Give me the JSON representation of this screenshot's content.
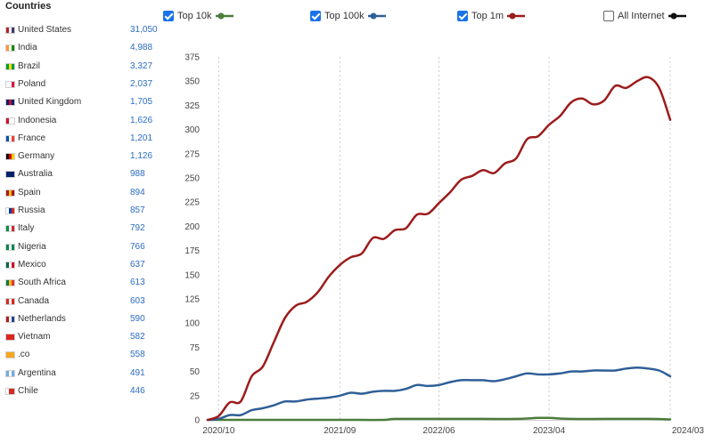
{
  "panel": {
    "title": "Countries",
    "countries": [
      {
        "name": "United States",
        "value": "31,050",
        "flag": [
          "#b22234",
          "#ffffff",
          "#3c3b6e"
        ]
      },
      {
        "name": "India",
        "value": "4,988",
        "flag": [
          "#ff9933",
          "#ffffff",
          "#138808"
        ]
      },
      {
        "name": "Brazil",
        "value": "3,327",
        "flag": [
          "#009c3b",
          "#ffdf00",
          "#009c3b"
        ]
      },
      {
        "name": "Poland",
        "value": "2,037",
        "flag": [
          "#ffffff",
          "#ffffff",
          "#dc143c"
        ]
      },
      {
        "name": "United Kingdom",
        "value": "1,705",
        "flag": [
          "#012169",
          "#c8102e",
          "#012169"
        ]
      },
      {
        "name": "Indonesia",
        "value": "1,626",
        "flag": [
          "#ce1126",
          "#ffffff",
          "#ffffff"
        ]
      },
      {
        "name": "France",
        "value": "1,201",
        "flag": [
          "#0055a4",
          "#ffffff",
          "#ef4135"
        ]
      },
      {
        "name": "Germany",
        "value": "1,126",
        "flag": [
          "#000000",
          "#dd0000",
          "#ffce00"
        ]
      },
      {
        "name": "Australia",
        "value": "988",
        "flag": [
          "#012169",
          "#012169",
          "#012169"
        ]
      },
      {
        "name": "Spain",
        "value": "894",
        "flag": [
          "#aa151b",
          "#f1bf00",
          "#aa151b"
        ]
      },
      {
        "name": "Russia",
        "value": "857",
        "flag": [
          "#ffffff",
          "#0039a6",
          "#d52b1e"
        ]
      },
      {
        "name": "Italy",
        "value": "792",
        "flag": [
          "#009246",
          "#ffffff",
          "#ce2b37"
        ]
      },
      {
        "name": "Nigeria",
        "value": "766",
        "flag": [
          "#008751",
          "#ffffff",
          "#008751"
        ]
      },
      {
        "name": "Mexico",
        "value": "637",
        "flag": [
          "#006847",
          "#ffffff",
          "#ce1126"
        ]
      },
      {
        "name": "South Africa",
        "value": "613",
        "flag": [
          "#007a4d",
          "#ffb612",
          "#de3831"
        ]
      },
      {
        "name": "Canada",
        "value": "603",
        "flag": [
          "#d52b1e",
          "#ffffff",
          "#d52b1e"
        ]
      },
      {
        "name": "Netherlands",
        "value": "590",
        "flag": [
          "#ae1c28",
          "#ffffff",
          "#21468b"
        ]
      },
      {
        "name": "Vietnam",
        "value": "582",
        "flag": [
          "#da251d",
          "#da251d",
          "#da251d"
        ]
      },
      {
        "name": ".co",
        "value": "558",
        "flag": [
          "#f5a623",
          "#f5a623",
          "#f5a623"
        ]
      },
      {
        "name": "Argentina",
        "value": "491",
        "flag": [
          "#74acdf",
          "#ffffff",
          "#74acdf"
        ]
      },
      {
        "name": "Chile",
        "value": "446",
        "flag": [
          "#ffffff",
          "#d52b1e",
          "#d52b1e"
        ]
      }
    ]
  },
  "legend": [
    {
      "label": "Top 10k",
      "checked": true,
      "color": "#4a7c3a"
    },
    {
      "label": "Top 100k",
      "checked": true,
      "color": "#2f5f97"
    },
    {
      "label": "Top 1m",
      "checked": true,
      "color": "#9c1c1c"
    },
    {
      "label": "All Internet",
      "checked": false,
      "color": "#111111"
    }
  ],
  "chart_data": {
    "type": "line",
    "xlabel": "",
    "ylabel": "",
    "x_tick_labels": [
      "2020/10",
      "2021/09",
      "2022/06",
      "2023/04",
      "2024/03"
    ],
    "ylim": [
      0,
      375
    ],
    "y_ticks": [
      0,
      25,
      50,
      75,
      100,
      125,
      150,
      175,
      200,
      225,
      250,
      275,
      300,
      325,
      350,
      375
    ],
    "grid": {
      "vertical": true,
      "horizontal": false
    },
    "x_range": [
      "2020-09",
      "2024-03"
    ],
    "series": [
      {
        "name": "Top 10k",
        "color": "#4a7c3a",
        "points": [
          [
            "2020-09",
            0
          ],
          [
            "2021-03",
            0
          ],
          [
            "2021-09",
            0
          ],
          [
            "2022-01",
            0
          ],
          [
            "2022-02",
            1
          ],
          [
            "2022-06",
            1
          ],
          [
            "2022-10",
            1
          ],
          [
            "2023-01",
            1
          ],
          [
            "2023-03",
            2
          ],
          [
            "2023-04",
            2
          ],
          [
            "2023-06",
            1
          ],
          [
            "2023-09",
            1
          ],
          [
            "2024-01",
            1
          ],
          [
            "2024-03",
            0.5
          ]
        ]
      },
      {
        "name": "Top 100k",
        "color": "#2f5f97",
        "points": [
          [
            "2020-09",
            0
          ],
          [
            "2020-10",
            1
          ],
          [
            "2020-11",
            5
          ],
          [
            "2020-12",
            5
          ],
          [
            "2021-01",
            10
          ],
          [
            "2021-02",
            12
          ],
          [
            "2021-03",
            15
          ],
          [
            "2021-04",
            19
          ],
          [
            "2021-05",
            19
          ],
          [
            "2021-06",
            21
          ],
          [
            "2021-07",
            22
          ],
          [
            "2021-08",
            23
          ],
          [
            "2021-09",
            25
          ],
          [
            "2021-10",
            28
          ],
          [
            "2021-11",
            27
          ],
          [
            "2021-12",
            29
          ],
          [
            "2022-01",
            30
          ],
          [
            "2022-02",
            30
          ],
          [
            "2022-03",
            32
          ],
          [
            "2022-04",
            36
          ],
          [
            "2022-05",
            35
          ],
          [
            "2022-06",
            36
          ],
          [
            "2022-07",
            39
          ],
          [
            "2022-08",
            41
          ],
          [
            "2022-09",
            41
          ],
          [
            "2022-10",
            41
          ],
          [
            "2022-11",
            40
          ],
          [
            "2022-12",
            42
          ],
          [
            "2023-01",
            45
          ],
          [
            "2023-02",
            48
          ],
          [
            "2023-03",
            47
          ],
          [
            "2023-04",
            47
          ],
          [
            "2023-05",
            48
          ],
          [
            "2023-06",
            50
          ],
          [
            "2023-07",
            50
          ],
          [
            "2023-08",
            51
          ],
          [
            "2023-09",
            51
          ],
          [
            "2023-10",
            51
          ],
          [
            "2023-11",
            53
          ],
          [
            "2023-12",
            54
          ],
          [
            "2024-01",
            53
          ],
          [
            "2024-02",
            51
          ],
          [
            "2024-03",
            45
          ]
        ]
      },
      {
        "name": "Top 1m",
        "color": "#9c1c1c",
        "points": [
          [
            "2020-09",
            0
          ],
          [
            "2020-10",
            4
          ],
          [
            "2020-11",
            18
          ],
          [
            "2020-12",
            19
          ],
          [
            "2021-01",
            45
          ],
          [
            "2021-02",
            55
          ],
          [
            "2021-03",
            80
          ],
          [
            "2021-04",
            105
          ],
          [
            "2021-05",
            118
          ],
          [
            "2021-06",
            122
          ],
          [
            "2021-07",
            132
          ],
          [
            "2021-08",
            148
          ],
          [
            "2021-09",
            160
          ],
          [
            "2021-10",
            168
          ],
          [
            "2021-11",
            172
          ],
          [
            "2021-12",
            188
          ],
          [
            "2022-01",
            187
          ],
          [
            "2022-02",
            196
          ],
          [
            "2022-03",
            198
          ],
          [
            "2022-04",
            212
          ],
          [
            "2022-05",
            213
          ],
          [
            "2022-06",
            224
          ],
          [
            "2022-07",
            235
          ],
          [
            "2022-08",
            248
          ],
          [
            "2022-09",
            252
          ],
          [
            "2022-10",
            258
          ],
          [
            "2022-11",
            255
          ],
          [
            "2022-12",
            265
          ],
          [
            "2023-01",
            270
          ],
          [
            "2023-02",
            290
          ],
          [
            "2023-03",
            293
          ],
          [
            "2023-04",
            305
          ],
          [
            "2023-05",
            314
          ],
          [
            "2023-06",
            328
          ],
          [
            "2023-07",
            332
          ],
          [
            "2023-08",
            326
          ],
          [
            "2023-09",
            330
          ],
          [
            "2023-10",
            345
          ],
          [
            "2023-11",
            343
          ],
          [
            "2023-12",
            350
          ],
          [
            "2024-01",
            354
          ],
          [
            "2024-02",
            343
          ],
          [
            "2024-03",
            310
          ]
        ]
      }
    ]
  }
}
